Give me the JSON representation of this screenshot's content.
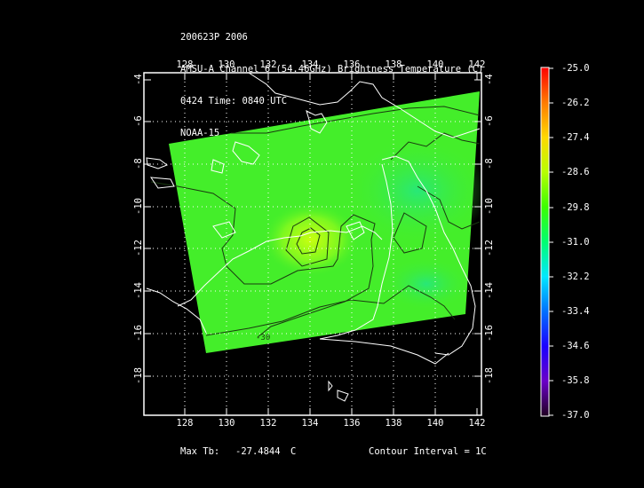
{
  "header": {
    "line1": "200623P 2006",
    "line2": "AMSU-A Channel 6 (54.46GHz) Brightness Temperature (C)",
    "line3": "0424 Time: 0840 UTC",
    "line4": "NOAA-15"
  },
  "map": {
    "lon_ticks": [
      "128",
      "130",
      "132",
      "134",
      "136",
      "138",
      "140",
      "142"
    ],
    "lat_ticks": [
      "-4",
      "-6",
      "-8",
      "-10",
      "-12",
      "-14",
      "-16",
      "-18"
    ],
    "lon_range": [
      126,
      142
    ],
    "lat_range": [
      -4,
      -19
    ],
    "contour_label": "-30",
    "colors": {
      "background": "#000000",
      "field_main": "#44ee2a",
      "coast": "#ffffff",
      "contour": "#1a3a10",
      "grid": "#ffffff"
    }
  },
  "colorbar": {
    "labels": [
      "-25.0",
      "-26.2",
      "-27.4",
      "-28.6",
      "-29.8",
      "-31.0",
      "-32.2",
      "-33.4",
      "-34.6",
      "-35.8",
      "-37.0"
    ],
    "colors": [
      "#ff0000",
      "#ff7a00",
      "#ffd800",
      "#b8ff00",
      "#3cff00",
      "#00ff70",
      "#00e8ff",
      "#0070ff",
      "#1a00ff",
      "#6a00c8",
      "#200020"
    ]
  },
  "footer": {
    "max_tb_label": "Max Tb:",
    "max_tb_value": "-27.4844",
    "max_tb_unit": "C",
    "contour_interval": "Contour Interval = 1C"
  }
}
